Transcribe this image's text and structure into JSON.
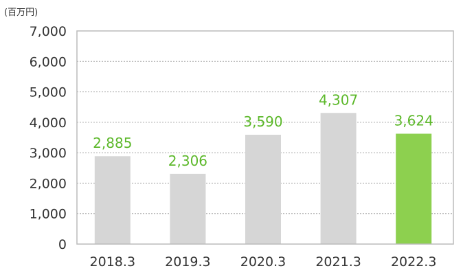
{
  "chart_data": {
    "type": "bar",
    "title": "",
    "unit_label": "(百万円)",
    "xlabel": "",
    "ylabel": "",
    "categories": [
      "2018.3",
      "2019.3",
      "2020.3",
      "2021.3",
      "2022.3"
    ],
    "values": [
      2885,
      2306,
      3590,
      4307,
      3624
    ],
    "data_labels": [
      "2,885",
      "2,306",
      "3,590",
      "4,307",
      "3,624"
    ],
    "ylim": [
      0,
      7000
    ],
    "yticks": [
      0,
      1000,
      2000,
      3000,
      4000,
      5000,
      6000,
      7000
    ],
    "ytick_labels": [
      "0",
      "1,000",
      "2,000",
      "3,000",
      "4,000",
      "5,000",
      "6,000",
      "7,000"
    ],
    "grid": true,
    "grid_style": "dotted",
    "highlight_index": 4,
    "colors": {
      "bar": "#d6d6d6",
      "highlight_bar": "#8dd04f",
      "data_label": "#5cb82a",
      "frame": "#bbbbbb",
      "grid": "#aaaaaa"
    }
  }
}
